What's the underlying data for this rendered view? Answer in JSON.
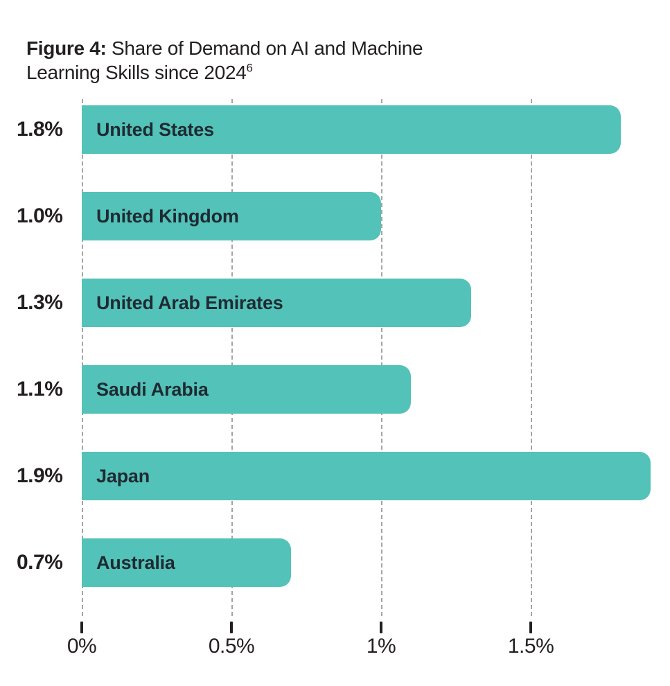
{
  "title": {
    "label": "Figure 4:",
    "text": " Share of Demand on AI and Machine Learning Skills since 2024",
    "footnote_marker": "6"
  },
  "colors": {
    "bar": "#53C2B8",
    "text_dark": "#231F20",
    "country_label": "#1F2A33",
    "gridline": "#8F8F8F",
    "background": "#FFFFFF"
  },
  "chart_data": {
    "type": "bar",
    "orientation": "horizontal",
    "title": "Figure 4: Share of Demand on AI and Machine Learning Skills since 2024",
    "xlabel": "",
    "ylabel": "",
    "categories": [
      "United States",
      "United Kingdom",
      "United Arab Emirates",
      "Saudi Arabia",
      "Japan",
      "Australia"
    ],
    "values": [
      1.8,
      1.0,
      1.3,
      1.1,
      1.9,
      0.7
    ],
    "value_labels": [
      "1.8%",
      "1.0%",
      "1.3%",
      "1.1%",
      "1.9%",
      "0.7%"
    ],
    "xlim": [
      0,
      1.965
    ],
    "x_ticks": [
      {
        "value": 0,
        "label": "0%"
      },
      {
        "value": 0.5,
        "label": "0.5%"
      },
      {
        "value": 1.0,
        "label": "1%"
      },
      {
        "value": 1.5,
        "label": "1.5%"
      }
    ],
    "grid": "dashed-vertical-behind-bars",
    "legend": false
  }
}
